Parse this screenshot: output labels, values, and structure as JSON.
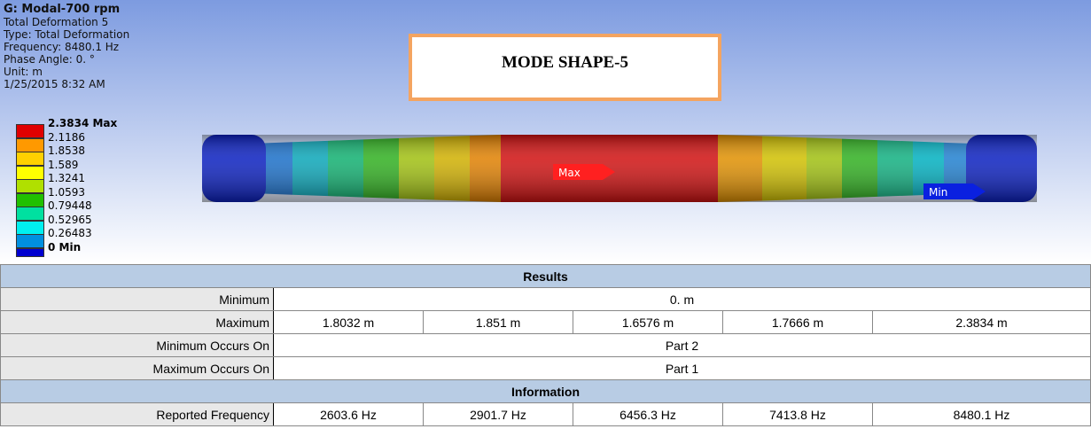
{
  "header": {
    "title": "G: Modal-700 rpm",
    "lines": [
      "Total Deformation 5",
      "Type: Total Deformation",
      "Frequency: 8480.1 Hz",
      "Phase Angle: 0. °",
      "Unit: m",
      "1/25/2015 8:32 AM"
    ]
  },
  "banner": "MODE SHAPE-5",
  "legend": {
    "labels": [
      "2.3834 Max",
      "2.1186",
      "1.8538",
      "1.589",
      "1.3241",
      "1.0593",
      "0.79448",
      "0.52965",
      "0.26483",
      "0 Min"
    ]
  },
  "probes": {
    "max": "Max",
    "min": "Min"
  },
  "table": {
    "sections": [
      {
        "title": "Results",
        "rows": [
          [
            "Minimum",
            "0. m"
          ],
          [
            "Maximum",
            "1.8032 m",
            "1.851 m",
            "1.6576 m",
            "1.7666 m",
            "2.3834 m"
          ],
          [
            "Minimum Occurs On",
            "Part 2"
          ],
          [
            "Maximum Occurs On",
            "Part 1"
          ]
        ]
      },
      {
        "title": "Information",
        "rows": [
          [
            "Reported Frequency",
            "2603.6 Hz",
            "2901.7 Hz",
            "6456.3 Hz",
            "7413.8 Hz",
            "8480.1 Hz"
          ]
        ]
      }
    ]
  }
}
